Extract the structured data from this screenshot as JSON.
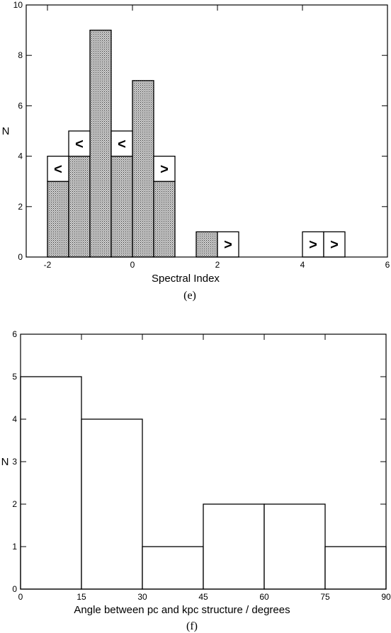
{
  "chart_data": [
    {
      "type": "bar",
      "subtype": "histogram",
      "caption": "(e)",
      "xlabel": "Spectral Index",
      "ylabel": "N",
      "xlim": [
        -2.5,
        6
      ],
      "ylim": [
        0,
        10
      ],
      "xticks": [
        -2,
        0,
        2,
        4,
        6
      ],
      "yticks": [
        0,
        2,
        4,
        6,
        8,
        10
      ],
      "bin_width": 0.5,
      "grid": false,
      "series": [
        {
          "fill": "stippled-gray",
          "bins": [
            {
              "x0": -2.0,
              "x1": -1.5,
              "count": 3
            },
            {
              "x0": -1.5,
              "x1": -1.0,
              "count": 4
            },
            {
              "x0": -1.0,
              "x1": -0.5,
              "count": 9
            },
            {
              "x0": -0.5,
              "x1": 0.0,
              "count": 4
            },
            {
              "x0": 0.0,
              "x1": 0.5,
              "count": 7
            },
            {
              "x0": 0.5,
              "x1": 1.0,
              "count": 3
            },
            {
              "x0": 1.5,
              "x1": 2.0,
              "count": 1
            }
          ]
        },
        {
          "fill": "white",
          "bins": [
            {
              "x0": -2.0,
              "x1": -1.5,
              "base": 3,
              "count": 1,
              "mark": "<"
            },
            {
              "x0": -1.5,
              "x1": -1.0,
              "base": 4,
              "count": 1,
              "mark": "<"
            },
            {
              "x0": -0.5,
              "x1": 0.0,
              "base": 4,
              "count": 1,
              "mark": "<"
            },
            {
              "x0": 0.5,
              "x1": 1.0,
              "base": 3,
              "count": 1,
              "mark": ">"
            },
            {
              "x0": 2.0,
              "x1": 2.5,
              "base": 0,
              "count": 1,
              "mark": ">"
            },
            {
              "x0": 4.0,
              "x1": 4.5,
              "base": 0,
              "count": 1,
              "mark": ">"
            },
            {
              "x0": 4.5,
              "x1": 5.0,
              "base": 0,
              "count": 1,
              "mark": ">"
            }
          ]
        }
      ]
    },
    {
      "type": "bar",
      "subtype": "histogram",
      "caption": "(f)",
      "xlabel": "Angle between pc and kpc structure / degrees",
      "ylabel": "N",
      "xlim": [
        0,
        90
      ],
      "ylim": [
        0,
        6
      ],
      "xticks": [
        0,
        15,
        30,
        45,
        60,
        75,
        90
      ],
      "yticks": [
        0,
        1,
        2,
        3,
        4,
        5,
        6
      ],
      "bin_width": 15,
      "grid": false,
      "series": [
        {
          "fill": "white",
          "bins": [
            {
              "x0": 0,
              "x1": 15,
              "count": 5
            },
            {
              "x0": 15,
              "x1": 30,
              "count": 4
            },
            {
              "x0": 30,
              "x1": 45,
              "count": 1
            },
            {
              "x0": 45,
              "x1": 60,
              "count": 2
            },
            {
              "x0": 60,
              "x1": 75,
              "count": 2
            },
            {
              "x0": 75,
              "x1": 90,
              "count": 1
            }
          ]
        }
      ]
    }
  ]
}
